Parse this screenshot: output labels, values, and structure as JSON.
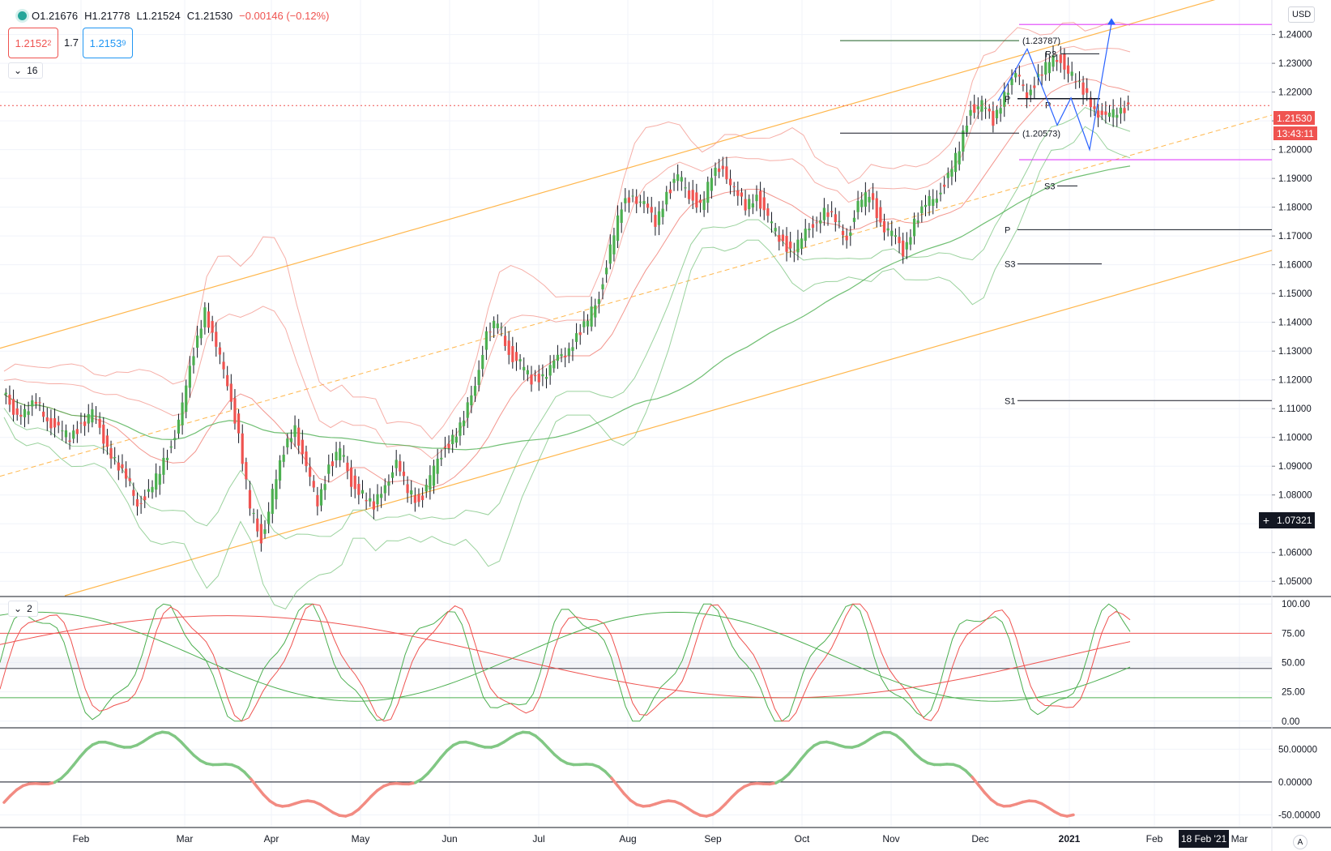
{
  "header": {
    "open": "O1.21676",
    "high": "H1.21778",
    "low": "L1.21524",
    "close": "C1.21530",
    "change": "−0.00146 (−0.12%)",
    "bid": "1.2152",
    "bid_sup": "2",
    "spread": "1.7",
    "ask": "1.2153",
    "ask_sup": "9",
    "pane1_label": "16",
    "pane2_label": "2",
    "currency": "USD"
  },
  "price_tags": {
    "last": "1.21530",
    "countdown": "13:43:11",
    "crosshair": "1.07321",
    "crosshair_date": "18 Feb '21",
    "auto": "A"
  },
  "colors": {
    "up": "#4caf50",
    "down": "#ef5350",
    "channel": "#ffb74d",
    "bb": "#f28b82",
    "bb_green": "#81c784",
    "ma": "#4caf50",
    "pivot": "#131722",
    "magenta": "#e040fb",
    "projection": "#2962ff"
  },
  "chart_data": [
    {
      "type": "candlestick",
      "name": "EURUSD weekly-ish candles",
      "x_axis": [
        "Feb",
        "Mar",
        "Apr",
        "May",
        "Jun",
        "Jul",
        "Aug",
        "Sep",
        "Oct",
        "Nov",
        "Dec",
        "2021",
        "Feb",
        "Mar"
      ],
      "y_ticks": [
        "1.24000",
        "1.23000",
        "1.22000",
        "1.21000",
        "1.20000",
        "1.19000",
        "1.18000",
        "1.17000",
        "1.16000",
        "1.15000",
        "1.14000",
        "1.13000",
        "1.12000",
        "1.11000",
        "1.10000",
        "1.09000",
        "1.08000",
        "1.07000",
        "1.06000",
        "1.05000"
      ],
      "ylim": [
        1.045,
        1.252
      ],
      "close_path": [
        1.115,
        1.11,
        1.108,
        1.112,
        1.107,
        1.102,
        1.1,
        1.105,
        1.108,
        1.1,
        1.092,
        1.085,
        1.078,
        1.08,
        1.088,
        1.098,
        1.11,
        1.13,
        1.145,
        1.13,
        1.12,
        1.1,
        1.075,
        1.065,
        1.08,
        1.095,
        1.105,
        1.088,
        1.078,
        1.09,
        1.095,
        1.085,
        1.08,
        1.075,
        1.085,
        1.09,
        1.082,
        1.078,
        1.085,
        1.095,
        1.1,
        1.105,
        1.12,
        1.135,
        1.14,
        1.13,
        1.125,
        1.12,
        1.122,
        1.125,
        1.13,
        1.135,
        1.14,
        1.15,
        1.165,
        1.18,
        1.185,
        1.18,
        1.175,
        1.185,
        1.19,
        1.185,
        1.18,
        1.19,
        1.195,
        1.185,
        1.18,
        1.185,
        1.175,
        1.17,
        1.165,
        1.168,
        1.175,
        1.178,
        1.175,
        1.17,
        1.18,
        1.185,
        1.175,
        1.17,
        1.165,
        1.175,
        1.18,
        1.185,
        1.19,
        1.2,
        1.215,
        1.215,
        1.21,
        1.22,
        1.225,
        1.22,
        1.225,
        1.23,
        1.232,
        1.225,
        1.22,
        1.215,
        1.21,
        1.214,
        1.2153
      ],
      "pivot_labels": [
        "(1.23787)",
        "(1.20573)",
        "R3",
        "P",
        "P",
        "S3",
        "P",
        "S3",
        "S1"
      ],
      "levels": {
        "pivot_a_high": 1.23787,
        "pivot_a_low": 1.20573,
        "magenta_high": 1.2435,
        "magenta_low": 1.1965
      }
    },
    {
      "type": "line",
      "name": "Stochastic",
      "y_ticks": [
        "100.00",
        "75.00",
        "50.00",
        "25.00",
        "0.00"
      ],
      "ylim": [
        -5,
        105
      ],
      "levels": [
        75,
        45,
        20
      ]
    },
    {
      "type": "line",
      "name": "Oscillator",
      "y_ticks": [
        "50.00000",
        "0.00000",
        "-50.00000"
      ],
      "ylim": [
        -68,
        80
      ]
    }
  ]
}
